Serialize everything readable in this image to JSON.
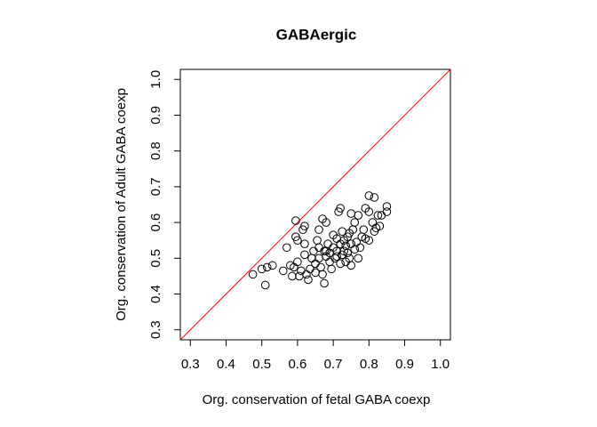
{
  "chart_data": {
    "type": "scatter",
    "title": "GABAergic",
    "x_label": "Org. conservation of fetal GABA coexp",
    "y_label": "Org. conservation of Adult GABA coexp",
    "xlim": [
      0.272,
      1.028
    ],
    "ylim": [
      0.272,
      1.028
    ],
    "xticks": [
      0.3,
      0.4,
      0.5,
      0.6,
      0.7,
      0.8,
      0.9,
      {
        "value": 1,
        "label": "1.0"
      }
    ],
    "yticks": [
      0.3,
      0.4,
      0.5,
      0.6,
      0.7,
      0.8,
      0.9,
      {
        "value": 1,
        "label": "1.0"
      }
    ],
    "abline": {
      "intercept": 0,
      "slope": 1,
      "color": "#ff0000"
    },
    "series": [
      {
        "color": "#000000",
        "x": [
          0.475,
          0.5,
          0.51,
          0.515,
          0.53,
          0.56,
          0.57,
          0.58,
          0.585,
          0.59,
          0.595,
          0.595,
          0.6,
          0.6,
          0.605,
          0.61,
          0.615,
          0.62,
          0.62,
          0.62,
          0.625,
          0.63,
          0.635,
          0.64,
          0.645,
          0.65,
          0.65,
          0.655,
          0.66,
          0.66,
          0.665,
          0.67,
          0.67,
          0.675,
          0.675,
          0.68,
          0.68,
          0.685,
          0.69,
          0.69,
          0.695,
          0.7,
          0.7,
          0.705,
          0.71,
          0.71,
          0.715,
          0.72,
          0.72,
          0.72,
          0.725,
          0.725,
          0.73,
          0.73,
          0.735,
          0.735,
          0.74,
          0.74,
          0.745,
          0.745,
          0.75,
          0.75,
          0.75,
          0.755,
          0.76,
          0.76,
          0.765,
          0.77,
          0.77,
          0.775,
          0.78,
          0.785,
          0.79,
          0.79,
          0.8,
          0.8,
          0.8,
          0.81,
          0.815,
          0.815,
          0.82,
          0.825,
          0.83,
          0.835,
          0.85,
          0.85,
          0.66,
          0.71,
          0.68
        ],
        "values": [
          0.455,
          0.47,
          0.425,
          0.475,
          0.48,
          0.465,
          0.53,
          0.48,
          0.45,
          0.475,
          0.605,
          0.56,
          0.55,
          0.49,
          0.45,
          0.465,
          0.58,
          0.59,
          0.54,
          0.51,
          0.455,
          0.44,
          0.47,
          0.5,
          0.52,
          0.485,
          0.46,
          0.55,
          0.53,
          0.5,
          0.475,
          0.61,
          0.455,
          0.43,
          0.52,
          0.6,
          0.505,
          0.54,
          0.49,
          0.515,
          0.47,
          0.565,
          0.53,
          0.5,
          0.555,
          0.52,
          0.63,
          0.64,
          0.485,
          0.54,
          0.575,
          0.51,
          0.52,
          0.55,
          0.49,
          0.535,
          0.56,
          0.515,
          0.57,
          0.5,
          0.625,
          0.48,
          0.54,
          0.58,
          0.6,
          0.525,
          0.545,
          0.62,
          0.5,
          0.53,
          0.56,
          0.58,
          0.64,
          0.555,
          0.675,
          0.63,
          0.55,
          0.6,
          0.67,
          0.575,
          0.585,
          0.62,
          0.59,
          0.62,
          0.645,
          0.63,
          0.58,
          0.505,
          0.52
        ]
      }
    ]
  }
}
